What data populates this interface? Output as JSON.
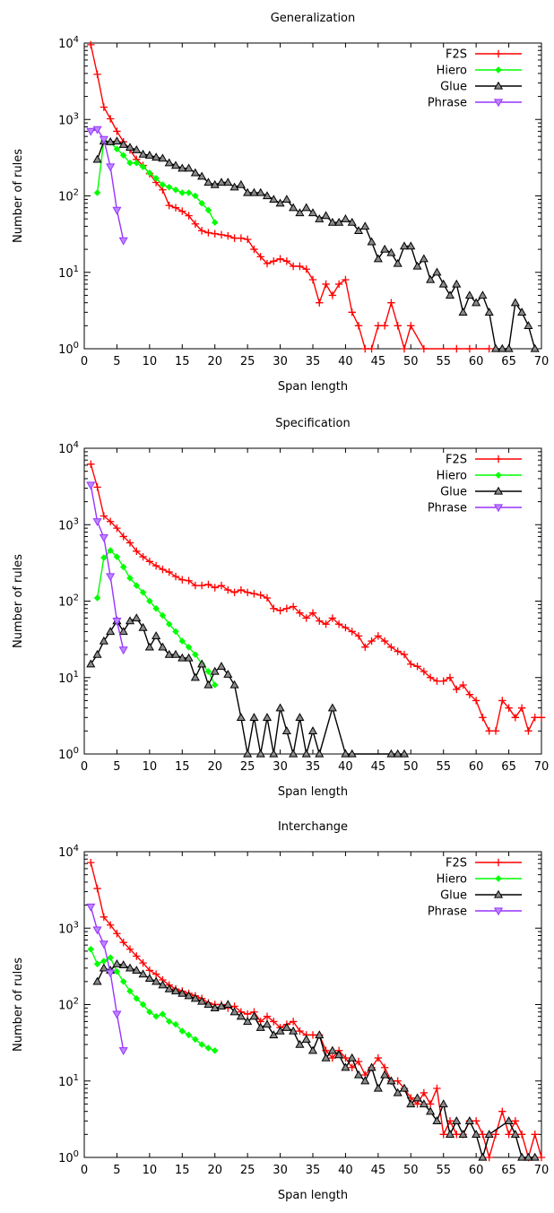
{
  "chart_data": [
    {
      "type": "line",
      "title": "Generalization",
      "xlabel": "Span length",
      "ylabel": "Number of rules",
      "xlim": [
        0,
        70
      ],
      "ylim_log10": [
        0,
        4
      ],
      "y_scale": "log",
      "x_ticks": [
        "0",
        "5",
        "10",
        "15",
        "20",
        "25",
        "30",
        "35",
        "40",
        "45",
        "50",
        "55",
        "60",
        "65",
        "70"
      ],
      "y_ticks": [
        "10^0",
        "10^1",
        "10^2",
        "10^3",
        "10^4"
      ],
      "legend_placement": "top-right",
      "series": [
        {
          "name": "F2S",
          "color": "#ff0000",
          "marker": "plus",
          "x": [
            1,
            2,
            3,
            4,
            5,
            6,
            7,
            8,
            9,
            10,
            11,
            12,
            13,
            14,
            15,
            16,
            17,
            18,
            19,
            20,
            21,
            22,
            23,
            24,
            25,
            26,
            27,
            28,
            29,
            30,
            31,
            32,
            33,
            34,
            35,
            36,
            37,
            38,
            39,
            40,
            41,
            42,
            43,
            44,
            45,
            46,
            47,
            48,
            49,
            50,
            52,
            57,
            59,
            62
          ],
          "y": [
            9500,
            3900,
            1450,
            1020,
            700,
            510,
            400,
            300,
            250,
            195,
            150,
            120,
            75,
            70,
            63,
            55,
            43,
            35,
            33,
            32,
            31,
            30,
            28,
            28,
            27,
            20,
            16,
            13,
            14,
            15,
            14,
            12,
            12,
            11,
            8,
            4,
            7,
            5,
            7,
            8,
            3,
            2,
            1,
            1,
            2,
            2,
            4,
            2,
            1,
            2,
            1,
            1,
            1,
            1
          ]
        },
        {
          "name": "Hiero",
          "color": "#00ff00",
          "marker": "diamond",
          "x": [
            2,
            3,
            4,
            5,
            6,
            7,
            8,
            9,
            10,
            11,
            12,
            13,
            14,
            15,
            16,
            17,
            18,
            19,
            20
          ],
          "y": [
            110,
            530,
            500,
            410,
            340,
            270,
            270,
            240,
            200,
            170,
            140,
            130,
            120,
            110,
            110,
            100,
            80,
            65,
            45
          ]
        },
        {
          "name": "Glue",
          "color": "#000000",
          "marker": "triangle-up",
          "x": [
            2,
            3,
            4,
            5,
            6,
            7,
            8,
            9,
            10,
            11,
            12,
            13,
            14,
            15,
            16,
            17,
            18,
            19,
            20,
            21,
            22,
            23,
            24,
            25,
            26,
            27,
            28,
            29,
            30,
            31,
            32,
            33,
            34,
            35,
            36,
            37,
            38,
            39,
            40,
            41,
            42,
            43,
            44,
            45,
            46,
            47,
            48,
            49,
            50,
            51,
            52,
            53,
            54,
            55,
            56,
            57,
            58,
            59,
            60,
            61,
            62,
            63,
            64,
            65,
            66,
            67,
            68,
            69
          ],
          "y": [
            300,
            520,
            510,
            520,
            470,
            430,
            400,
            350,
            340,
            320,
            310,
            270,
            250,
            230,
            230,
            200,
            180,
            150,
            140,
            150,
            150,
            130,
            140,
            110,
            110,
            110,
            100,
            90,
            80,
            90,
            70,
            60,
            70,
            60,
            50,
            55,
            45,
            45,
            50,
            45,
            35,
            40,
            25,
            15,
            20,
            18,
            13,
            22,
            22,
            12,
            15,
            8,
            10,
            7,
            5,
            7,
            3,
            5,
            4,
            5,
            3,
            1,
            1,
            1,
            4,
            3,
            2,
            1
          ]
        },
        {
          "name": "Phrase",
          "color": "#9933ff",
          "marker": "triangle-down",
          "x": [
            1,
            2,
            3,
            4,
            5,
            6
          ],
          "y": [
            700,
            740,
            550,
            240,
            65,
            26
          ]
        }
      ]
    },
    {
      "type": "line",
      "title": "Specification",
      "xlabel": "Span length",
      "ylabel": "Number of rules",
      "xlim": [
        0,
        70
      ],
      "ylim_log10": [
        0,
        4
      ],
      "y_scale": "log",
      "x_ticks": [
        "0",
        "5",
        "10",
        "15",
        "20",
        "25",
        "30",
        "35",
        "40",
        "45",
        "50",
        "55",
        "60",
        "65",
        "70"
      ],
      "y_ticks": [
        "10^0",
        "10^1",
        "10^2",
        "10^3",
        "10^4"
      ],
      "legend_placement": "top-right",
      "series": [
        {
          "name": "F2S",
          "color": "#ff0000",
          "marker": "plus",
          "x": [
            1,
            2,
            3,
            4,
            5,
            6,
            7,
            8,
            9,
            10,
            11,
            12,
            13,
            14,
            15,
            16,
            17,
            18,
            19,
            20,
            21,
            22,
            23,
            24,
            25,
            26,
            27,
            28,
            29,
            30,
            31,
            32,
            33,
            34,
            35,
            36,
            37,
            38,
            39,
            40,
            41,
            42,
            43,
            44,
            45,
            46,
            47,
            48,
            49,
            50,
            51,
            52,
            53,
            54,
            55,
            56,
            57,
            58,
            59,
            60,
            61,
            62,
            63,
            64,
            65,
            66,
            67,
            68,
            69,
            70
          ],
          "y": [
            6200,
            3100,
            1300,
            1100,
            900,
            700,
            580,
            450,
            380,
            330,
            290,
            260,
            240,
            210,
            190,
            185,
            160,
            160,
            165,
            150,
            160,
            140,
            130,
            140,
            130,
            125,
            120,
            110,
            80,
            75,
            80,
            85,
            70,
            60,
            70,
            55,
            50,
            60,
            50,
            45,
            40,
            35,
            25,
            30,
            35,
            30,
            25,
            22,
            20,
            15,
            14,
            12,
            10,
            9,
            9,
            10,
            7,
            8,
            6,
            5,
            3,
            2,
            2,
            5,
            4,
            3,
            4,
            2,
            3,
            3
          ],
          "y_note_unused": ""
        },
        {
          "name": "Hiero",
          "color": "#00ff00",
          "marker": "diamond",
          "x": [
            2,
            3,
            4,
            5,
            6,
            7,
            8,
            9,
            10,
            11,
            12,
            13,
            14,
            15,
            16,
            17,
            18,
            19,
            20
          ],
          "y": [
            110,
            370,
            460,
            380,
            280,
            200,
            160,
            130,
            100,
            80,
            65,
            50,
            40,
            30,
            25,
            20,
            15,
            12,
            8
          ]
        },
        {
          "name": "Glue",
          "color": "#000000",
          "marker": "triangle-up",
          "x": [
            1,
            2,
            3,
            4,
            5,
            6,
            7,
            8,
            9,
            10,
            11,
            12,
            13,
            14,
            15,
            16,
            17,
            18,
            19,
            20,
            21,
            22,
            23,
            24,
            25,
            26,
            27,
            28,
            29,
            30,
            31,
            32,
            33,
            34,
            35,
            36,
            38,
            40,
            41,
            47,
            48,
            49
          ],
          "y": [
            15,
            20,
            30,
            40,
            55,
            40,
            55,
            60,
            45,
            25,
            35,
            25,
            20,
            20,
            18,
            18,
            10,
            15,
            8,
            12,
            14,
            11,
            8,
            3,
            1,
            3,
            1,
            3,
            1,
            4,
            2,
            1,
            3,
            1,
            2,
            1,
            4,
            1,
            1,
            1,
            1,
            1
          ]
        },
        {
          "name": "Phrase",
          "color": "#9933ff",
          "marker": "triangle-down",
          "x": [
            1,
            2,
            3,
            4,
            5,
            6
          ],
          "y": [
            3300,
            1100,
            680,
            210,
            55,
            23
          ]
        }
      ]
    },
    {
      "type": "line",
      "title": "Interchange",
      "xlabel": "Span length",
      "ylabel": "Number of rules",
      "xlim": [
        0,
        70
      ],
      "ylim_log10": [
        0,
        4
      ],
      "y_scale": "log",
      "x_ticks": [
        "0",
        "5",
        "10",
        "15",
        "20",
        "25",
        "30",
        "35",
        "40",
        "45",
        "50",
        "55",
        "60",
        "65",
        "70"
      ],
      "y_ticks": [
        "10^0",
        "10^1",
        "10^2",
        "10^3",
        "10^4"
      ],
      "legend_placement": "top-right",
      "series": [
        {
          "name": "F2S",
          "color": "#ff0000",
          "marker": "plus",
          "x": [
            1,
            2,
            3,
            4,
            5,
            6,
            7,
            8,
            9,
            10,
            11,
            12,
            13,
            14,
            15,
            16,
            17,
            18,
            19,
            20,
            21,
            22,
            23,
            24,
            25,
            26,
            27,
            28,
            29,
            30,
            31,
            32,
            33,
            34,
            35,
            36,
            37,
            38,
            39,
            40,
            41,
            42,
            43,
            44,
            45,
            46,
            47,
            48,
            49,
            50,
            51,
            52,
            53,
            54,
            55,
            56,
            57,
            58,
            59,
            60,
            61,
            62,
            63,
            64,
            65,
            66,
            67,
            68,
            69,
            70
          ],
          "y": [
            7200,
            3300,
            1400,
            1100,
            850,
            650,
            530,
            430,
            350,
            280,
            250,
            210,
            180,
            160,
            150,
            140,
            130,
            120,
            105,
            100,
            100,
            90,
            95,
            80,
            75,
            80,
            60,
            70,
            60,
            50,
            55,
            60,
            45,
            40,
            40,
            40,
            25,
            20,
            25,
            20,
            15,
            18,
            12,
            15,
            20,
            15,
            10,
            10,
            8,
            6,
            5,
            7,
            5,
            8,
            2,
            3,
            2,
            2,
            3,
            3,
            2,
            1,
            2,
            4,
            2,
            3,
            2,
            1,
            2,
            1
          ]
        },
        {
          "name": "Hiero",
          "color": "#00ff00",
          "marker": "diamond",
          "x": [
            1,
            2,
            3,
            4,
            5,
            6,
            7,
            8,
            9,
            10,
            11,
            12,
            13,
            14,
            15,
            16,
            17,
            18,
            19,
            20
          ],
          "y": [
            530,
            340,
            370,
            410,
            270,
            200,
            150,
            120,
            100,
            80,
            70,
            75,
            60,
            55,
            45,
            40,
            35,
            30,
            27,
            25
          ]
        },
        {
          "name": "Glue",
          "color": "#000000",
          "marker": "triangle-up",
          "x": [
            2,
            3,
            4,
            5,
            6,
            7,
            8,
            9,
            10,
            11,
            12,
            13,
            14,
            15,
            16,
            17,
            18,
            19,
            20,
            21,
            22,
            23,
            24,
            25,
            26,
            27,
            28,
            29,
            30,
            31,
            32,
            33,
            34,
            35,
            36,
            37,
            38,
            39,
            40,
            41,
            42,
            43,
            44,
            45,
            46,
            47,
            48,
            49,
            50,
            51,
            52,
            53,
            54,
            55,
            56,
            57,
            58,
            59,
            60,
            61,
            62,
            65,
            66,
            67,
            68,
            69
          ],
          "y": [
            200,
            300,
            280,
            340,
            330,
            300,
            280,
            250,
            220,
            200,
            180,
            160,
            150,
            140,
            130,
            120,
            110,
            100,
            90,
            95,
            100,
            80,
            70,
            60,
            70,
            50,
            55,
            40,
            45,
            50,
            45,
            30,
            35,
            25,
            40,
            20,
            25,
            22,
            15,
            20,
            12,
            10,
            15,
            8,
            12,
            10,
            7,
            8,
            5,
            6,
            5,
            4,
            3,
            5,
            2,
            3,
            2,
            3,
            2,
            1,
            2,
            3,
            2,
            1,
            1,
            1
          ]
        },
        {
          "name": "Phrase",
          "color": "#9933ff",
          "marker": "triangle-down",
          "x": [
            1,
            2,
            3,
            4,
            5,
            6
          ],
          "y": [
            1900,
            950,
            620,
            260,
            75,
            25
          ]
        }
      ]
    }
  ]
}
